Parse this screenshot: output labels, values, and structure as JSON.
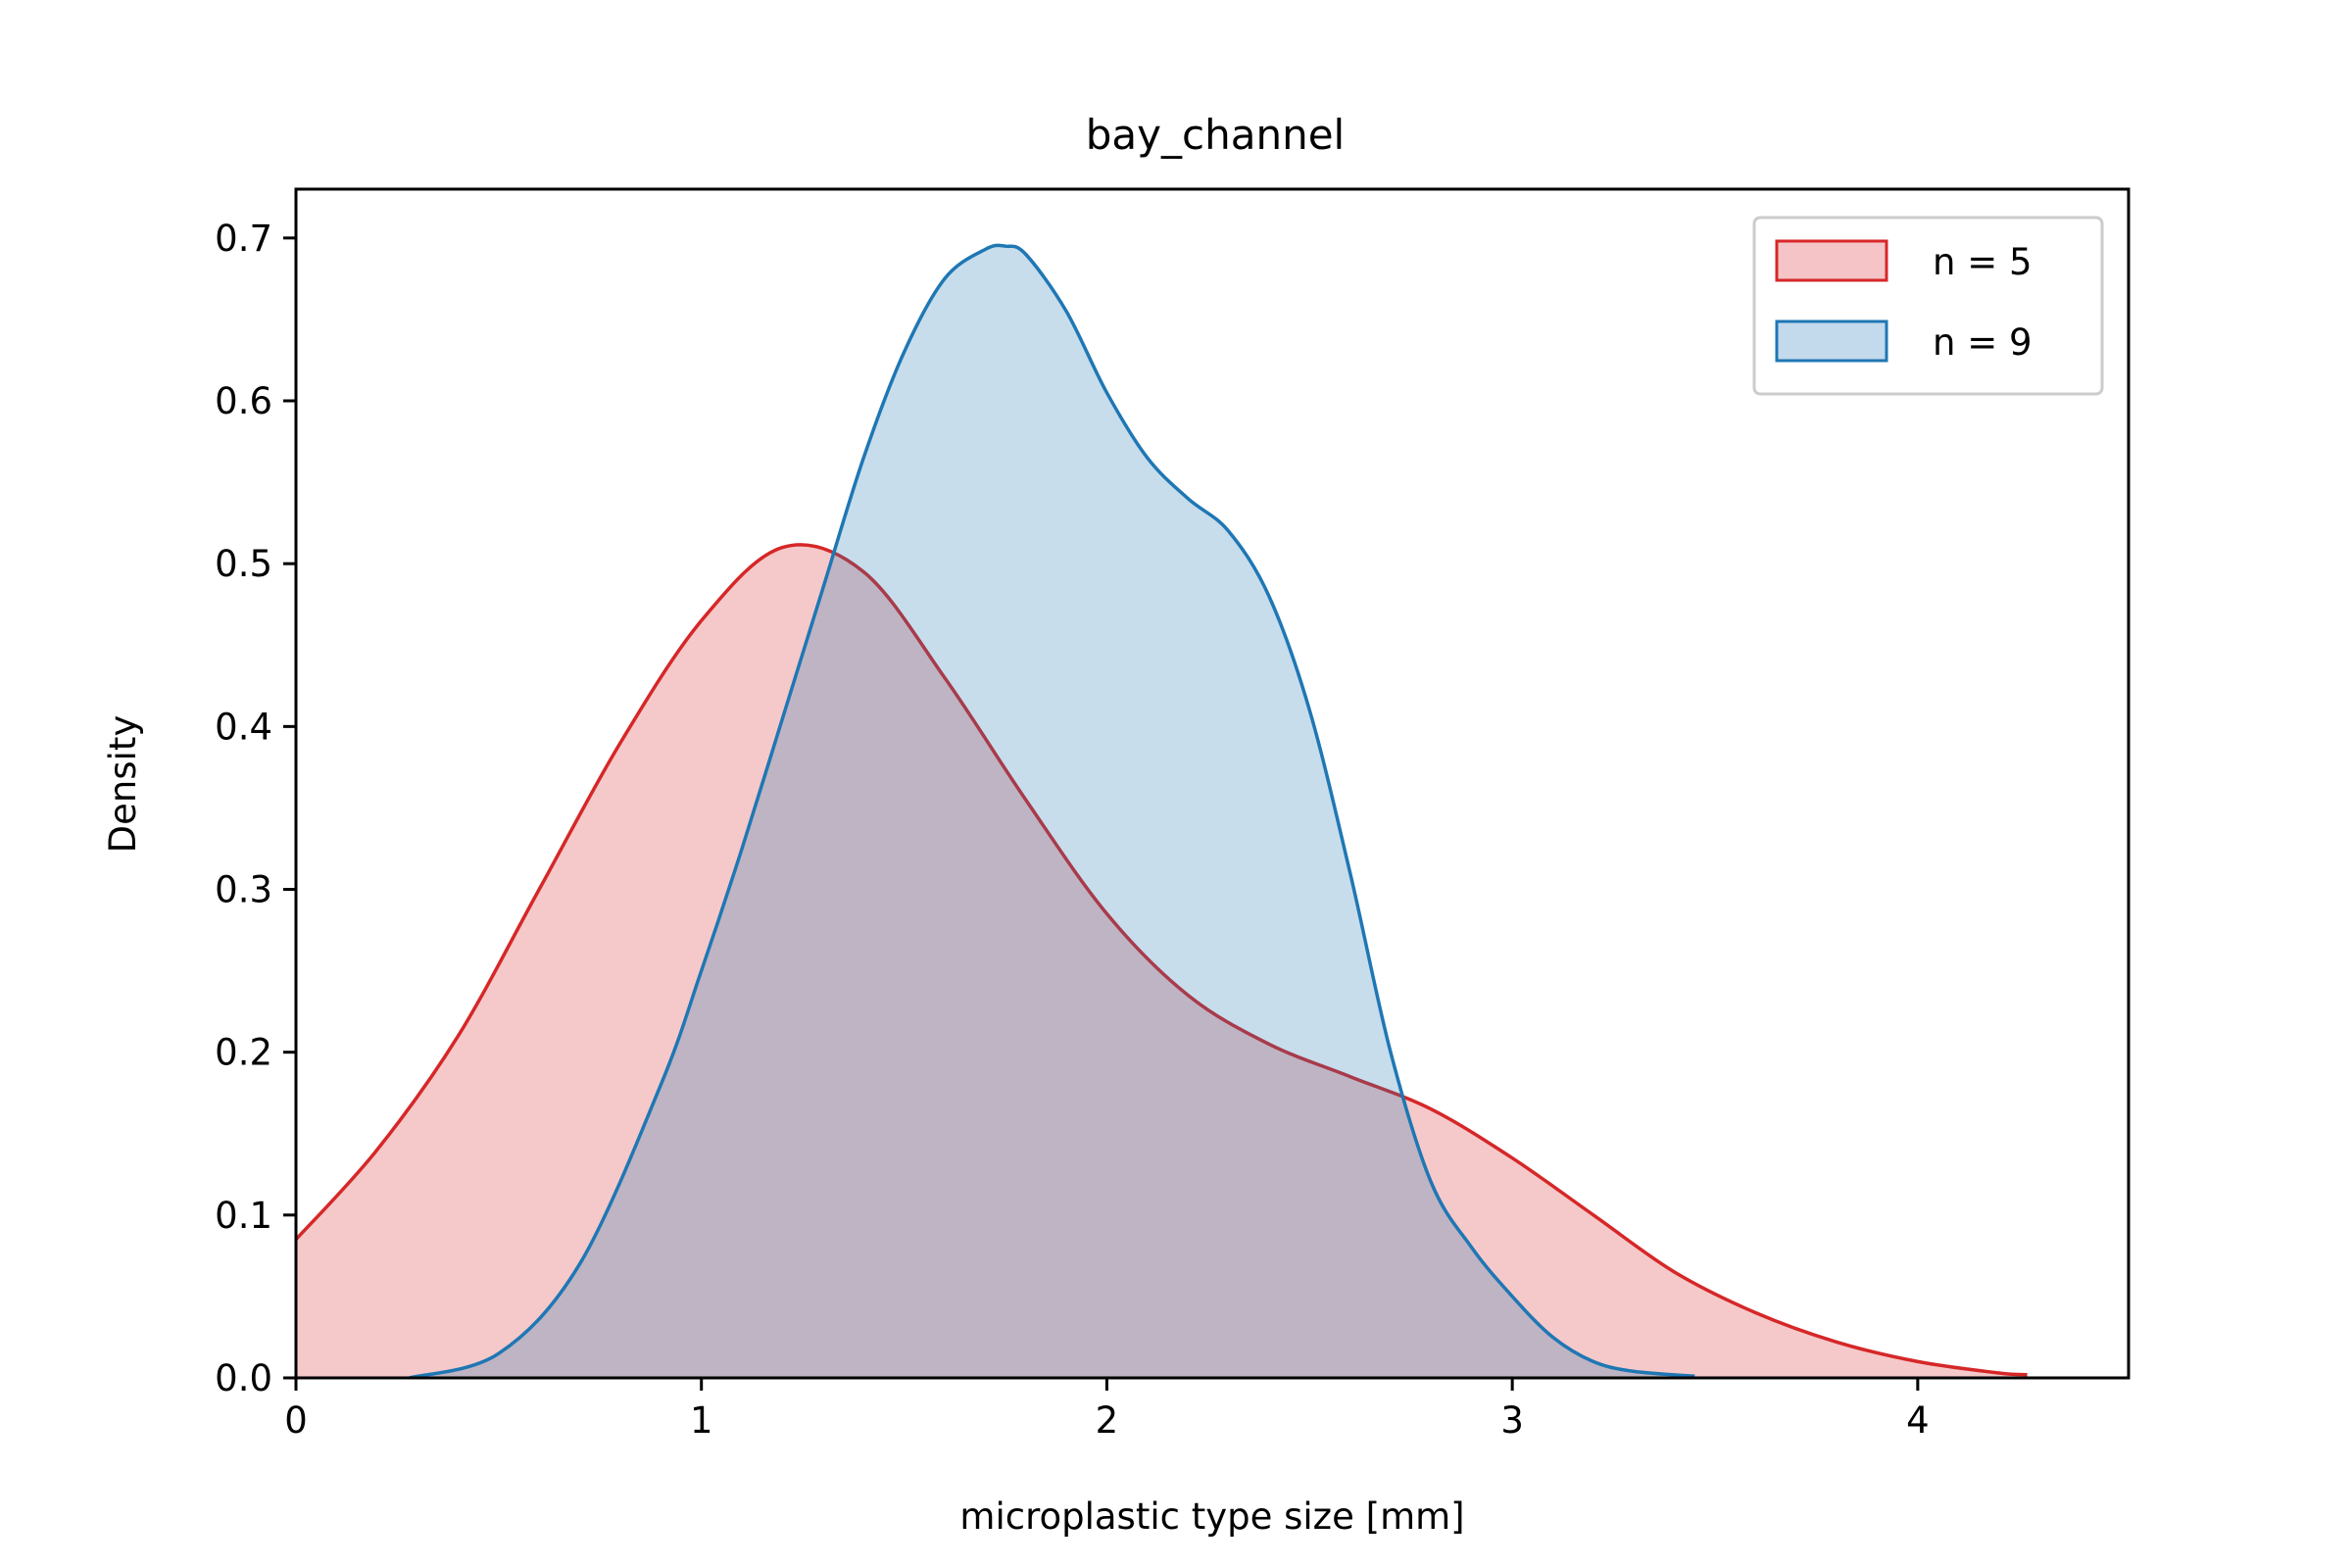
{
  "chart_data": {
    "type": "area",
    "title": "bay_channel",
    "xlabel": "microplastic type size [mm]",
    "ylabel": "Density",
    "xlim": [
      0,
      4.52
    ],
    "ylim": [
      0,
      0.73
    ],
    "xticks": [
      0,
      1,
      2,
      3,
      4
    ],
    "yticks": [
      0.0,
      0.1,
      0.2,
      0.3,
      0.4,
      0.5,
      0.6,
      0.7
    ],
    "xtick_labels": [
      "0",
      "1",
      "2",
      "3",
      "4"
    ],
    "ytick_labels": [
      "0.0",
      "0.1",
      "0.2",
      "0.3",
      "0.4",
      "0.5",
      "0.6",
      "0.7"
    ],
    "grid": false,
    "legend_position": "top-right",
    "series": [
      {
        "name": "n = 5",
        "color": "#d62728",
        "fill_color": "#f4c4c6",
        "x": [
          0.0,
          0.2,
          0.4,
          0.6,
          0.8,
          1.0,
          1.2,
          1.4,
          1.6,
          1.8,
          2.0,
          2.2,
          2.4,
          2.6,
          2.8,
          3.0,
          3.2,
          3.4,
          3.6,
          3.8,
          4.0,
          4.2,
          4.27
        ],
        "y": [
          0.085,
          0.14,
          0.21,
          0.3,
          0.39,
          0.465,
          0.51,
          0.495,
          0.43,
          0.355,
          0.285,
          0.235,
          0.205,
          0.185,
          0.165,
          0.135,
          0.1,
          0.065,
          0.04,
          0.022,
          0.01,
          0.003,
          0.002
        ]
      },
      {
        "name": "n = 9",
        "color": "#1f77b4",
        "fill_color": "#c3d9ec",
        "x": [
          0.28,
          0.5,
          0.7,
          0.9,
          1.0,
          1.1,
          1.2,
          1.3,
          1.4,
          1.5,
          1.6,
          1.7,
          1.75,
          1.8,
          1.9,
          2.0,
          2.1,
          2.2,
          2.3,
          2.4,
          2.5,
          2.6,
          2.7,
          2.8,
          2.9,
          3.0,
          3.1,
          3.2,
          3.3,
          3.45
        ],
        "y": [
          0.0,
          0.015,
          0.07,
          0.18,
          0.25,
          0.325,
          0.405,
          0.485,
          0.565,
          0.63,
          0.675,
          0.693,
          0.695,
          0.69,
          0.655,
          0.605,
          0.565,
          0.54,
          0.52,
          0.48,
          0.41,
          0.31,
          0.2,
          0.12,
          0.08,
          0.05,
          0.025,
          0.01,
          0.004,
          0.001
        ]
      }
    ]
  }
}
